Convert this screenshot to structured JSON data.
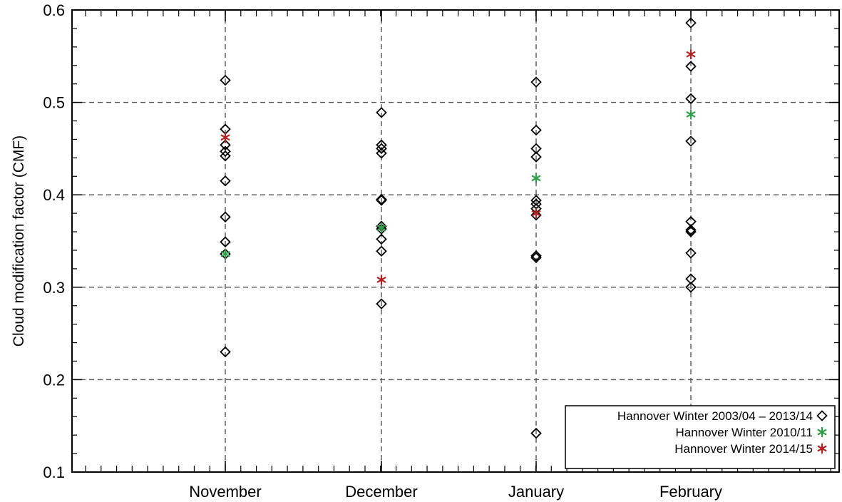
{
  "chart_data": {
    "type": "scatter",
    "title": "",
    "xlabel": "",
    "ylabel": "Cloud modification factor (CMF)",
    "categories": [
      "November",
      "December",
      "January",
      "February"
    ],
    "ylim": [
      0.1,
      0.6
    ],
    "yticks": [
      "0.1",
      "0.2",
      "0.3",
      "0.4",
      "0.5",
      "0.6"
    ],
    "grid": true,
    "legend_position": "bottom-right",
    "series": [
      {
        "name": "Hannover Winter 2003/04 – 2013/14",
        "marker": "diamond",
        "color": "#000000",
        "points": [
          {
            "category": "November",
            "values": [
              0.524,
              0.471,
              0.454,
              0.447,
              0.442,
              0.415,
              0.376,
              0.349,
              0.336,
              0.23
            ]
          },
          {
            "category": "December",
            "values": [
              0.489,
              0.454,
              0.45,
              0.445,
              0.395,
              0.394,
              0.366,
              0.363,
              0.352,
              0.339,
              0.282
            ]
          },
          {
            "category": "January",
            "values": [
              0.522,
              0.47,
              0.45,
              0.441,
              0.394,
              0.39,
              0.385,
              0.378,
              0.334,
              0.332,
              0.142
            ]
          },
          {
            "category": "February",
            "values": [
              0.586,
              0.539,
              0.504,
              0.458,
              0.371,
              0.362,
              0.36,
              0.337,
              0.309,
              0.3
            ]
          }
        ]
      },
      {
        "name": "Hannover Winter 2010/11",
        "marker": "asterisk",
        "color": "#2e9e48",
        "points": [
          {
            "category": "November",
            "values": [
              0.336
            ]
          },
          {
            "category": "December",
            "values": [
              0.364
            ]
          },
          {
            "category": "January",
            "values": [
              0.418
            ]
          },
          {
            "category": "February",
            "values": [
              0.487
            ]
          }
        ]
      },
      {
        "name": "Hannover Winter 2014/15",
        "marker": "asterisk",
        "color": "#b22222",
        "points": [
          {
            "category": "November",
            "values": [
              0.462
            ]
          },
          {
            "category": "December",
            "values": [
              0.308
            ]
          },
          {
            "category": "January",
            "values": [
              0.38
            ]
          },
          {
            "category": "February",
            "values": [
              0.552
            ]
          }
        ]
      }
    ]
  }
}
